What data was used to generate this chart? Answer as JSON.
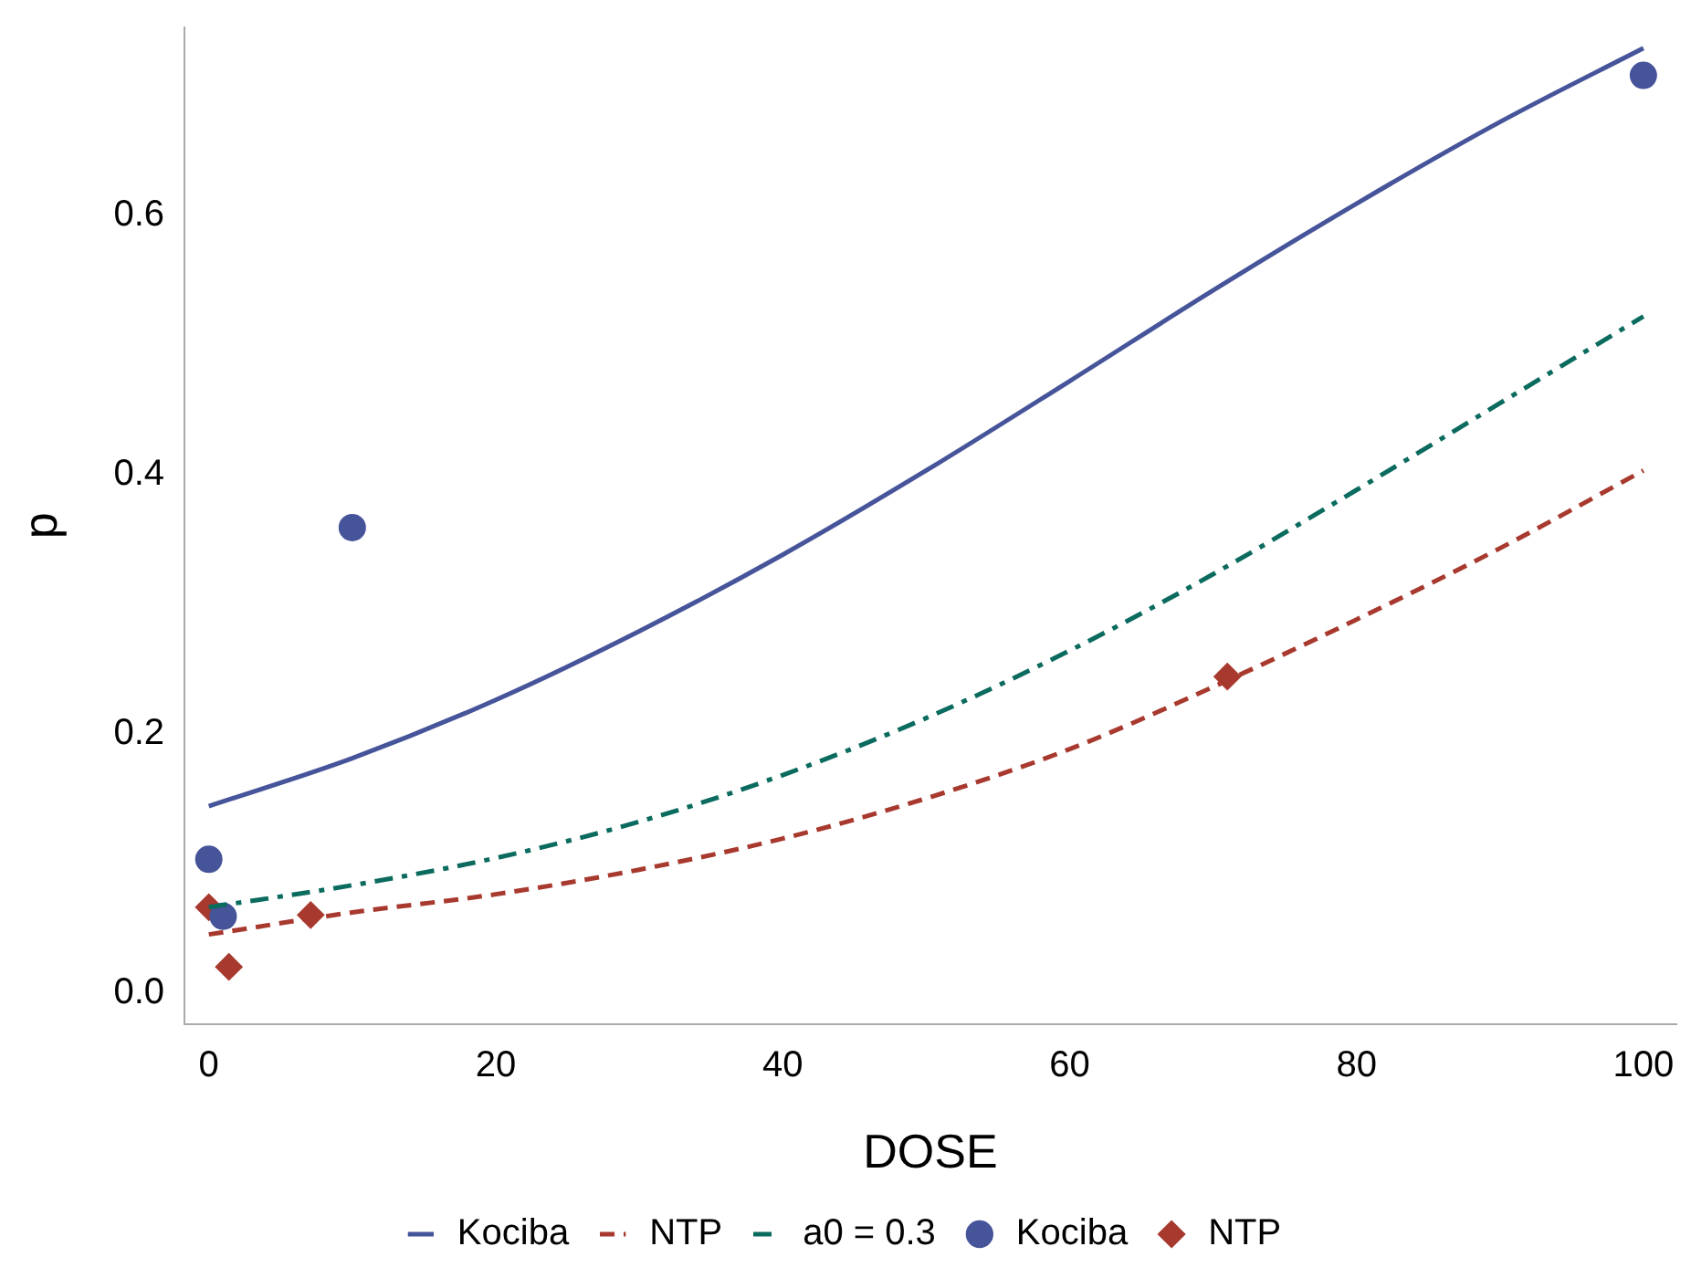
{
  "chart_data": {
    "type": "line",
    "xlabel": "DOSE",
    "ylabel": "p",
    "xlim": [
      -1.7,
      102.3
    ],
    "xticks": [
      0,
      20,
      40,
      60,
      80,
      100
    ],
    "ylim": [
      -0.024,
      0.745
    ],
    "yticks": [
      {
        "value": 0,
        "label": "0.0"
      },
      {
        "value": 0.2,
        "label": "0.2"
      },
      {
        "value": 0.4,
        "label": "0.4"
      },
      {
        "value": 0.6,
        "label": "0.6"
      }
    ],
    "grid": false,
    "legend": "bottom",
    "series": [
      {
        "name": "Kociba",
        "color": "#46549a",
        "line_style": "solid",
        "marker": "none",
        "x": [
          0,
          10,
          20,
          30,
          40,
          50,
          60,
          70,
          80,
          90,
          100
        ],
        "values": [
          0.144,
          0.181,
          0.226,
          0.279,
          0.338,
          0.403,
          0.472,
          0.542,
          0.609,
          0.672,
          0.729
        ]
      },
      {
        "name": "NTP",
        "color": "#a8392e",
        "line_style": "dashed",
        "marker": "none",
        "x": [
          0,
          10,
          20,
          30,
          40,
          50,
          60,
          70,
          80,
          90,
          100
        ],
        "values": [
          0.045,
          0.062,
          0.076,
          0.095,
          0.119,
          0.15,
          0.188,
          0.236,
          0.288,
          0.343,
          0.403
        ]
      },
      {
        "name": "a0 = 0.3",
        "color": "#0b6b5e",
        "line_style": "dashdot",
        "marker": "none",
        "x": [
          0,
          10,
          20,
          30,
          40,
          50,
          60,
          70,
          80,
          90,
          100
        ],
        "values": [
          0.066,
          0.083,
          0.104,
          0.132,
          0.168,
          0.212,
          0.264,
          0.323,
          0.388,
          0.455,
          0.522
        ]
      },
      {
        "name": "Kociba",
        "type": "scatter",
        "color": "#46549a",
        "marker": "circle",
        "x": [
          0,
          1,
          10,
          100
        ],
        "values": [
          0.103,
          0.059,
          0.359,
          0.708
        ]
      },
      {
        "name": "NTP",
        "type": "scatter",
        "color": "#a8392e",
        "marker": "diamond",
        "x": [
          0,
          1.4,
          7.1,
          71
        ],
        "values": [
          0.066,
          0.02,
          0.06,
          0.244
        ]
      }
    ]
  }
}
